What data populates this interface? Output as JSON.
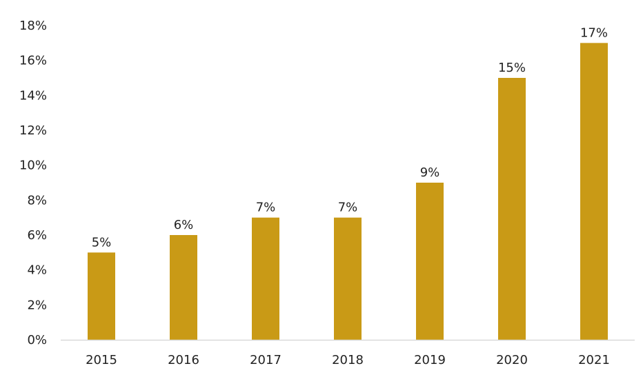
{
  "chart_data": {
    "type": "bar",
    "categories": [
      "2015",
      "2016",
      "2017",
      "2018",
      "2019",
      "2020",
      "2021"
    ],
    "values": [
      5,
      6,
      7,
      7,
      9,
      15,
      17
    ],
    "data_labels": [
      "5%",
      "6%",
      "7%",
      "7%",
      "9%",
      "15%",
      "17%"
    ],
    "title": "",
    "xlabel": "",
    "ylabel": "",
    "ylim": [
      0,
      18
    ],
    "yticks": [
      0,
      2,
      4,
      6,
      8,
      10,
      12,
      14,
      16,
      18
    ],
    "ytick_labels": [
      "0%",
      "2%",
      "4%",
      "6%",
      "8%",
      "10%",
      "12%",
      "14%",
      "16%",
      "18%"
    ],
    "grid": false,
    "legend": "none",
    "bar_color": "#C99A16",
    "axis_color": "#D9D9D9"
  }
}
